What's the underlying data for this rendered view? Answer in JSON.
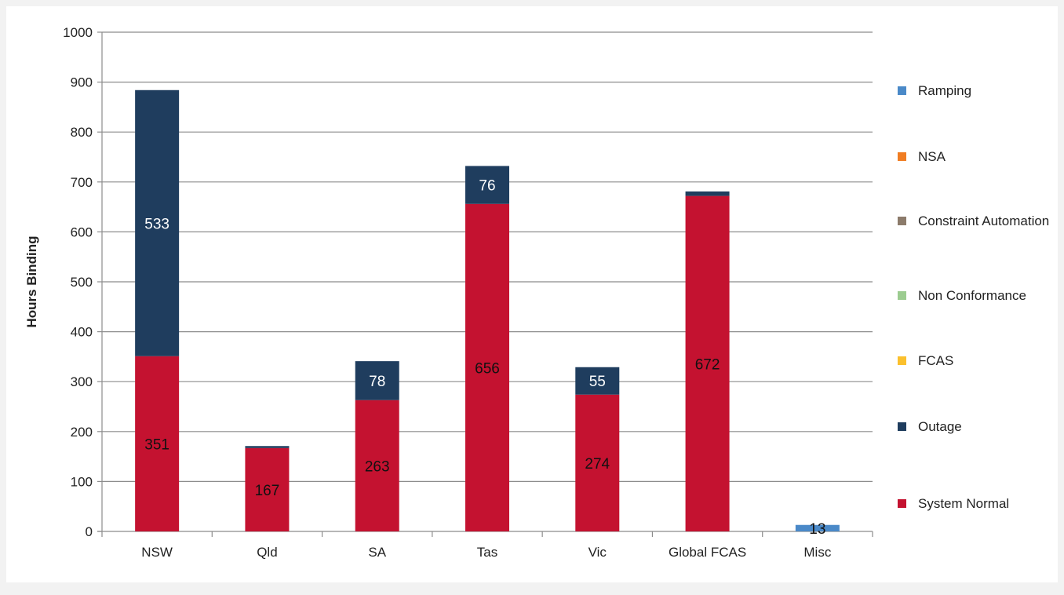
{
  "chart_data": {
    "type": "bar",
    "stacked": true,
    "title": "",
    "xlabel": "",
    "ylabel": "Hours Binding",
    "ylim": [
      0,
      1000
    ],
    "yticks": [
      0,
      100,
      200,
      300,
      400,
      500,
      600,
      700,
      800,
      900,
      1000
    ],
    "grid": true,
    "legend_position": "right",
    "categories": [
      "NSW",
      "Qld",
      "SA",
      "Tas",
      "Vic",
      "Global FCAS",
      "Misc"
    ],
    "series": [
      {
        "name": "System Normal",
        "color": "#c41230",
        "values": [
          351,
          167,
          263,
          656,
          274,
          672,
          0
        ],
        "labels": [
          "351",
          "167",
          "263",
          "656",
          "274",
          "672",
          ""
        ]
      },
      {
        "name": "Outage",
        "color": "#1f3d5e",
        "values": [
          533,
          4,
          78,
          76,
          55,
          9,
          0
        ],
        "labels": [
          "533",
          "",
          "78",
          "76",
          "55",
          "",
          ""
        ]
      },
      {
        "name": "FCAS",
        "color": "#fbc02d",
        "values": [
          0,
          0,
          0,
          0,
          0,
          0,
          0
        ],
        "labels": [
          "",
          "",
          "",
          "",
          "",
          "",
          ""
        ]
      },
      {
        "name": "Non Conformance",
        "color": "#9ccc90",
        "values": [
          0,
          0,
          0,
          0,
          0,
          0,
          0
        ],
        "labels": [
          "",
          "",
          "",
          "",
          "",
          "",
          ""
        ]
      },
      {
        "name": "Constraint Automation",
        "color": "#8c7b6b",
        "values": [
          0,
          0,
          0,
          0,
          0,
          0,
          0
        ],
        "labels": [
          "",
          "",
          "",
          "",
          "",
          "",
          ""
        ]
      },
      {
        "name": "NSA",
        "color": "#f07d22",
        "values": [
          0,
          0,
          0,
          0,
          0,
          0,
          0
        ],
        "labels": [
          "",
          "",
          "",
          "",
          "",
          "",
          ""
        ]
      },
      {
        "name": "Ramping",
        "color": "#4a89c8",
        "values": [
          0,
          0,
          0,
          0,
          0,
          0,
          13
        ],
        "labels": [
          "",
          "",
          "",
          "",
          "",
          "",
          "13"
        ]
      }
    ],
    "legend_order": [
      "Ramping",
      "NSA",
      "Constraint Automation",
      "Non Conformance",
      "FCAS",
      "Outage",
      "System Normal"
    ]
  }
}
